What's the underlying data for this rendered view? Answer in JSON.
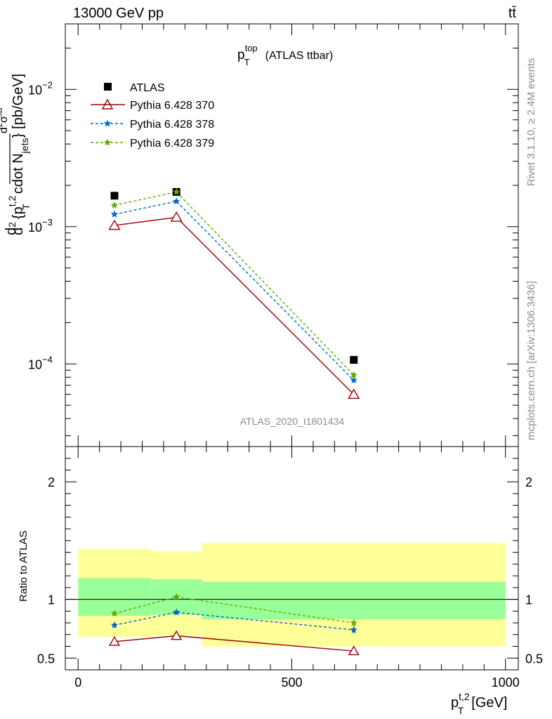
{
  "header": {
    "left": "13000 GeV pp",
    "right": "tt̄"
  },
  "title": {
    "main": "p",
    "sup": "top",
    "sub": "T",
    "rest": "(ATLAS ttbar)"
  },
  "side_labels": {
    "rivet": "Rivet 3.1.10, ≥ 2.4M events",
    "mcplots": "mcplots.cern.ch [arXiv:1306.3436]"
  },
  "analysis_id": "ATLAS_2020_I1801434",
  "y_label_main": {
    "num_d": "d",
    "num_d2": "d",
    "num_exp": "2",
    "num_sigma": "σ",
    "num_sup": "fid",
    "den": "d",
    "den_exp": "2",
    "den_p": "{p",
    "den_sup": "t,2",
    "den_sub": "T",
    "den_rest": "cdot N",
    "den_jets": "jets",
    "brace": "}",
    "unit": "[pb/GeV]"
  },
  "y_label_ratio": "Ratio to ATLAS",
  "x_label": {
    "p": "p",
    "sup": "t,2",
    "sub": "T",
    "unit": "[GeV]"
  },
  "colors": {
    "atlas": "#000000",
    "py370": "#990000",
    "py378": "#0066cc",
    "py379": "#66aa00",
    "band_inner": "#99ff99",
    "band_outer": "#ffff99"
  },
  "chart_data": {
    "type": "line",
    "x_range": [
      -30,
      1030
    ],
    "main": {
      "y_scale": "log",
      "y_range": [
        2.5e-05,
        0.03
      ],
      "y_ticks": [
        {
          "value": 0.0001,
          "base": "10",
          "exp": "−4"
        },
        {
          "value": 0.001,
          "base": "10",
          "exp": "−3"
        },
        {
          "value": 0.01,
          "base": "10",
          "exp": "−2"
        }
      ]
    },
    "ratio": {
      "y_range": [
        0.4,
        2.3
      ],
      "y_ticks": [
        "0.5",
        "1",
        "2"
      ],
      "y_tick_values": [
        0.5,
        1,
        2
      ]
    },
    "x_ticks": [
      "0",
      "500",
      "1000"
    ],
    "x_tick_values": [
      0,
      500,
      1000
    ],
    "bins": [
      [
        0,
        170
      ],
      [
        170,
        290
      ],
      [
        290,
        1000
      ]
    ],
    "bin_centers": [
      85,
      230,
      645
    ],
    "legend": {
      "position": "top-left",
      "entries": [
        "ATLAS",
        "Pythia 6.428 370",
        "Pythia 6.428 378",
        "Pythia 6.428 379"
      ]
    },
    "series": [
      {
        "name": "ATLAS",
        "key": "atlas",
        "marker": "square",
        "values": [
          0.00168,
          0.00179,
          0.000107
        ]
      },
      {
        "name": "Pythia 6.428 370",
        "key": "py370",
        "marker": "triangle",
        "values": [
          0.00102,
          0.00117,
          6e-05
        ]
      },
      {
        "name": "Pythia 6.428 378",
        "key": "py378",
        "marker": "star",
        "values": [
          0.00123,
          0.00153,
          7.6e-05
        ]
      },
      {
        "name": "Pythia 6.428 379",
        "key": "py379",
        "marker": "star",
        "values": [
          0.00143,
          0.00179,
          8.3e-05
        ]
      }
    ],
    "ratio_series": [
      {
        "key": "py370",
        "values": [
          0.64,
          0.69,
          0.56
        ],
        "errors": [
          0.01,
          0.02,
          0.03
        ]
      },
      {
        "key": "py378",
        "values": [
          0.78,
          0.89,
          0.74
        ],
        "errors": [
          0.02,
          0.02,
          0.03
        ]
      },
      {
        "key": "py379",
        "values": [
          0.88,
          1.02,
          0.8
        ],
        "errors": [
          0.02,
          0.02,
          0.03
        ]
      }
    ],
    "bands": {
      "inner": [
        [
          0.86,
          1.18
        ],
        [
          0.87,
          1.17
        ],
        [
          0.83,
          1.15
        ]
      ],
      "outer": [
        [
          0.68,
          1.43
        ],
        [
          0.69,
          1.41
        ],
        [
          0.6,
          1.48
        ]
      ]
    }
  }
}
